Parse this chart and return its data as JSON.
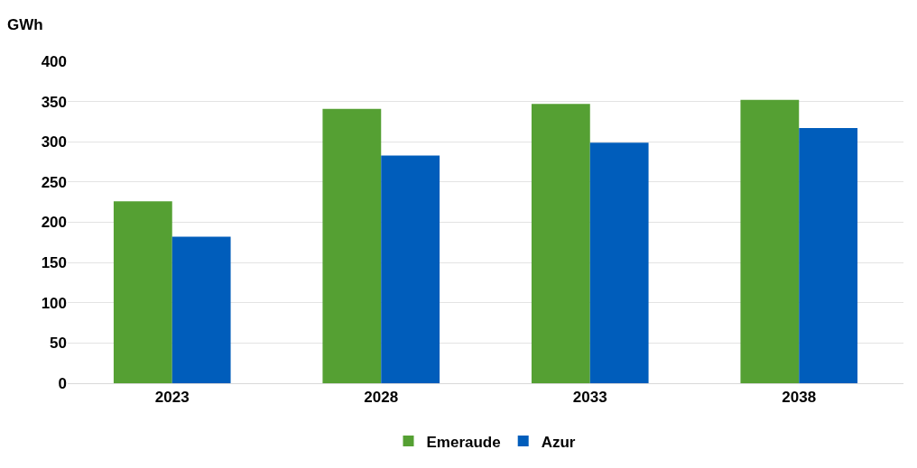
{
  "chart_data": {
    "type": "bar",
    "ylabel": "GWh",
    "categories": [
      "2023",
      "2028",
      "2033",
      "2038"
    ],
    "series": [
      {
        "name": "Emeraude",
        "color": "#55a033",
        "values": [
          226,
          341,
          347,
          352
        ]
      },
      {
        "name": "Azur",
        "color": "#005dbb",
        "values": [
          182,
          283,
          299,
          317
        ]
      }
    ],
    "ylim": [
      0,
      400
    ],
    "yticks": [
      0,
      50,
      100,
      150,
      200,
      250,
      300,
      350,
      400
    ],
    "grid": "y",
    "legend": "bottom"
  }
}
